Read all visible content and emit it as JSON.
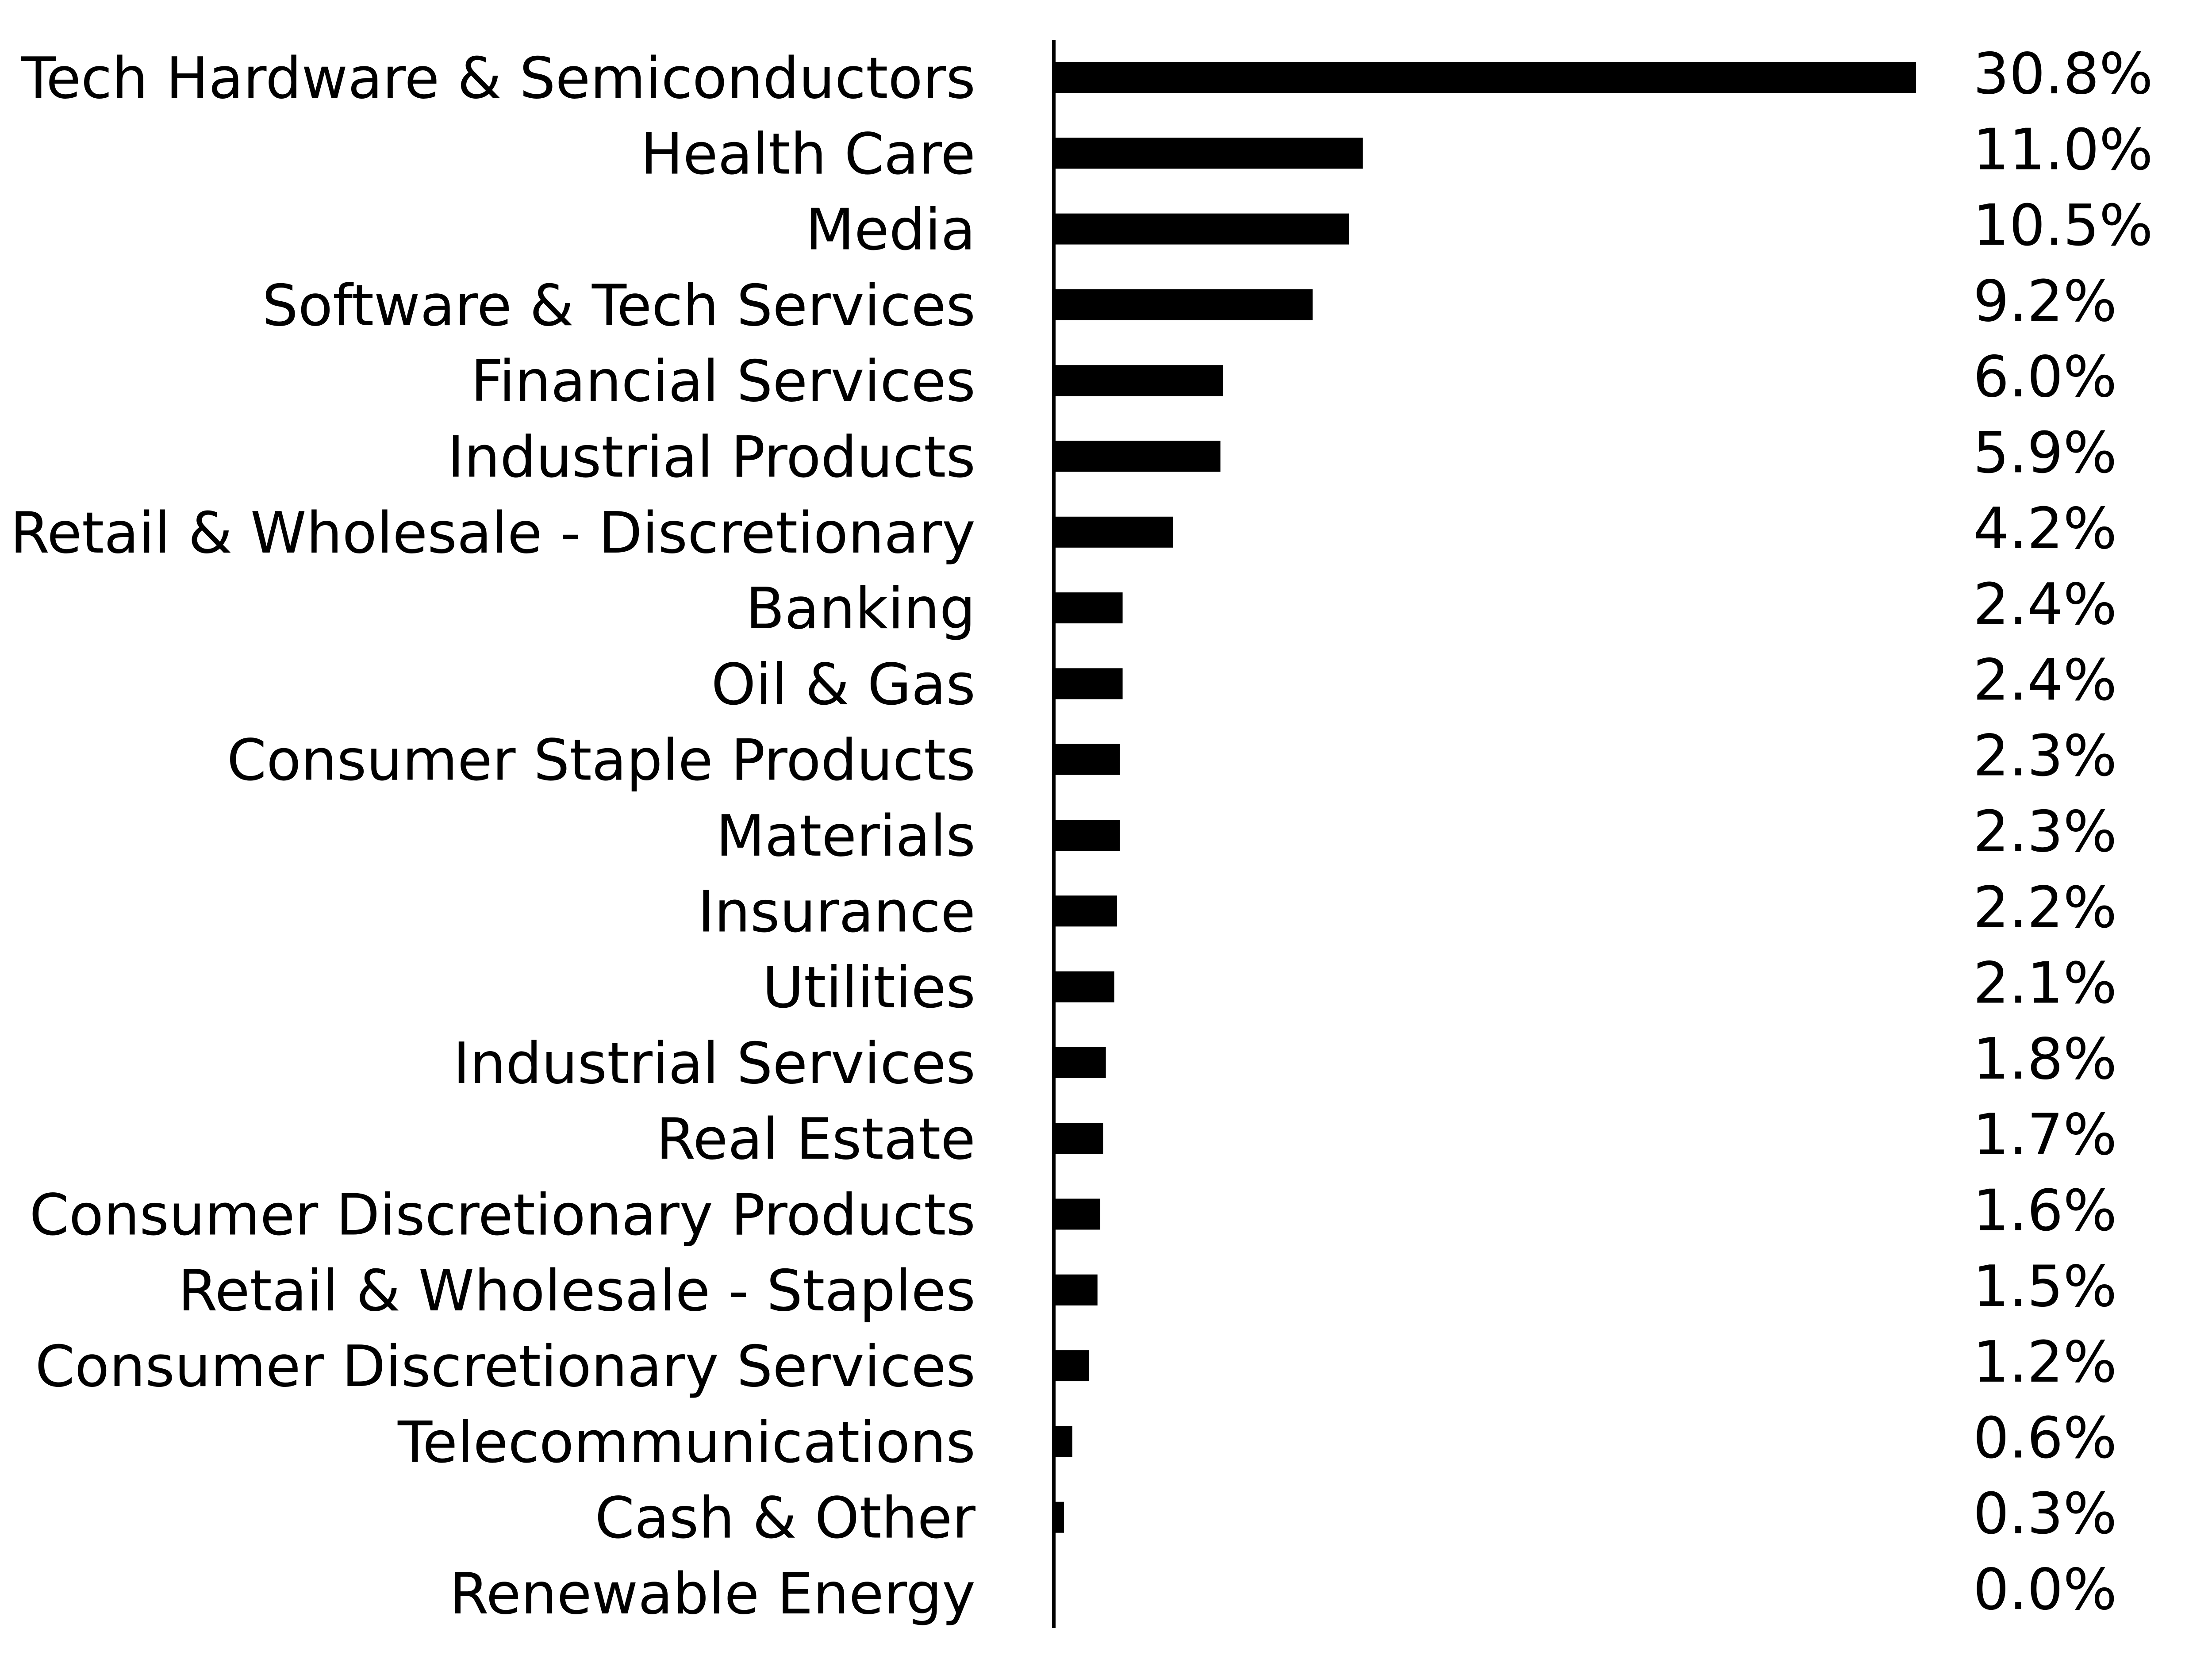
{
  "chart_data": {
    "type": "bar",
    "orientation": "horizontal",
    "categories": [
      "Tech Hardware & Semiconductors",
      "Health Care",
      "Media",
      "Software & Tech Services",
      "Financial Services",
      "Industrial Products",
      "Retail & Wholesale - Discretionary",
      "Banking",
      "Oil & Gas",
      "Consumer Staple Products",
      "Materials",
      "Insurance",
      "Utilities",
      "Industrial Services",
      "Real Estate",
      "Consumer Discretionary Products",
      "Retail & Wholesale - Staples",
      "Consumer Discretionary Services",
      "Telecommunications",
      "Cash & Other",
      "Renewable Energy"
    ],
    "values": [
      30.8,
      11.0,
      10.5,
      9.2,
      6.0,
      5.9,
      4.2,
      2.4,
      2.4,
      2.3,
      2.3,
      2.2,
      2.1,
      1.8,
      1.7,
      1.6,
      1.5,
      1.2,
      0.6,
      0.3,
      0.0
    ],
    "value_labels": [
      "30.8%",
      "11.0%",
      "10.5%",
      "9.2%",
      "6.0%",
      "5.9%",
      "4.2%",
      "2.4%",
      "2.4%",
      "2.3%",
      "2.3%",
      "2.2%",
      "2.1%",
      "1.8%",
      "1.7%",
      "1.6%",
      "1.5%",
      "1.2%",
      "0.6%",
      "0.3%",
      "0.0%"
    ],
    "xlim": [
      0,
      30.8
    ],
    "grid": false,
    "legend": "none",
    "bar_color": "#000000"
  }
}
